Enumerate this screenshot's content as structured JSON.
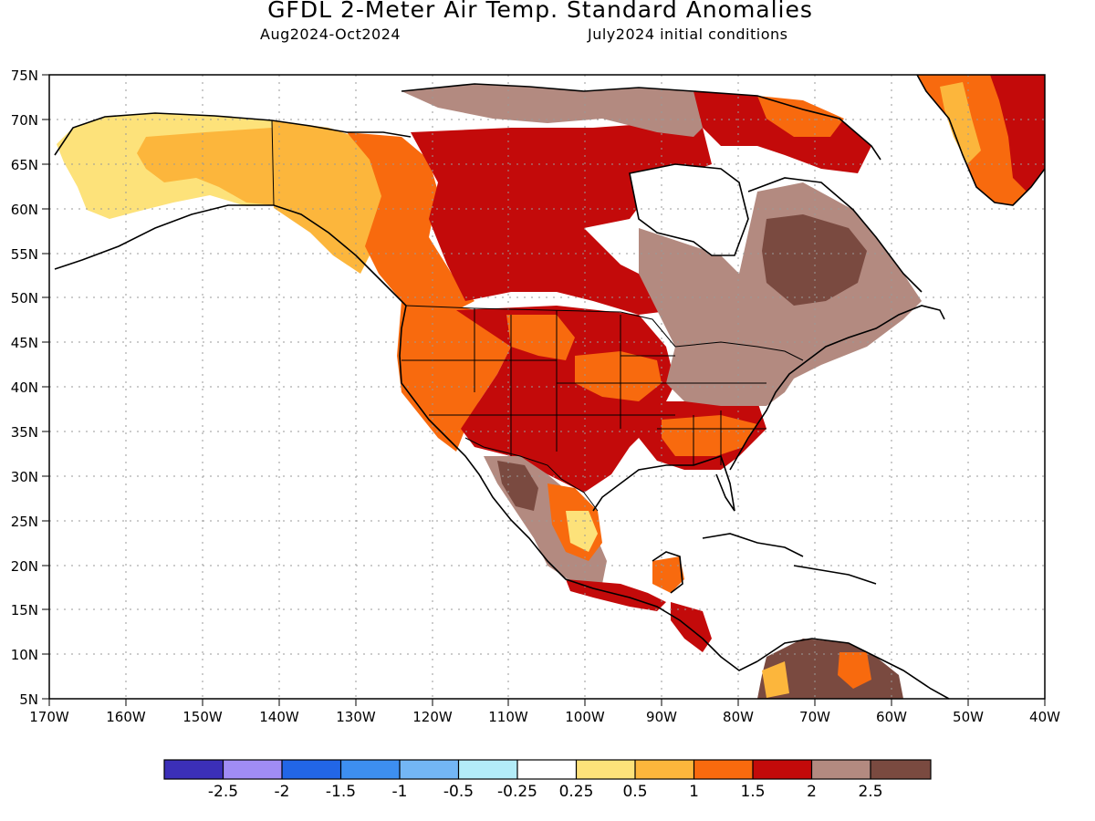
{
  "header": {
    "title": "GFDL 2-Meter Air Temp. Standard Anomalies",
    "period": "Aug2024-Oct2024",
    "initial_conditions": "July2024 initial conditions"
  },
  "axes": {
    "lat_labels": [
      "75N",
      "70N",
      "65N",
      "60N",
      "55N",
      "50N",
      "45N",
      "40N",
      "35N",
      "30N",
      "25N",
      "20N",
      "15N",
      "10N",
      "5N"
    ],
    "lon_labels": [
      "170W",
      "160W",
      "150W",
      "140W",
      "130W",
      "120W",
      "110W",
      "100W",
      "90W",
      "80W",
      "70W",
      "60W",
      "50W",
      "40W"
    ],
    "lat_values": [
      75,
      70,
      65,
      60,
      55,
      50,
      45,
      40,
      35,
      30,
      25,
      20,
      15,
      10,
      5
    ],
    "lon_values": [
      -170,
      -160,
      -150,
      -140,
      -130,
      -120,
      -110,
      -100,
      -90,
      -80,
      -70,
      -60,
      -50,
      -40
    ]
  },
  "legend": {
    "colors": [
      "#3b2fb8",
      "#a08cf5",
      "#2266e6",
      "#3d8ff0",
      "#73b6f5",
      "#b3ecf8",
      "#ffffff",
      "#fde27a",
      "#fcb63c",
      "#f86a0e",
      "#c30a0a",
      "#b38a80",
      "#7a4a40"
    ],
    "labels": [
      "-2.5",
      "-2",
      "-1.5",
      "-1",
      "-0.5",
      "-0.25",
      "0.25",
      "0.5",
      "1",
      "1.5",
      "2",
      "2.5"
    ]
  },
  "regions": [
    {
      "name": "alaska",
      "color": "#fcb63c"
    },
    {
      "name": "alaska-west",
      "color": "#fde27a"
    },
    {
      "name": "western-canada",
      "color": "#f86a0e"
    },
    {
      "name": "central-canada",
      "color": "#c30a0a"
    },
    {
      "name": "eastern-canada",
      "color": "#b38a80"
    },
    {
      "name": "labrador-core",
      "color": "#7a4a40"
    },
    {
      "name": "western-us",
      "color": "#f86a0e"
    },
    {
      "name": "central-us",
      "color": "#c30a0a"
    },
    {
      "name": "eastern-us",
      "color": "#b38a80"
    },
    {
      "name": "greenland",
      "color": "#c30a0a"
    },
    {
      "name": "mexico",
      "color": "#b38a80"
    }
  ]
}
